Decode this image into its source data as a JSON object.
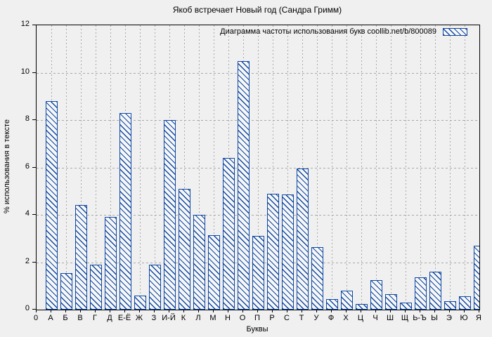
{
  "chart_data": {
    "type": "bar",
    "title": "Якоб встречает Новый год (Сандра Гримм)",
    "legend": "Диаграмма частоты использования букв coollib.net/b/800089",
    "legend_position": "top-right-inside",
    "xlabel": "Буквы",
    "ylabel": "% использования в тексте",
    "origin_label": "0",
    "ylim": [
      0,
      12
    ],
    "yticks": [
      0,
      2,
      4,
      6,
      8,
      10,
      12
    ],
    "grid": "dashed",
    "categories": [
      "А",
      "Б",
      "В",
      "Г",
      "Д",
      "Е-Ё",
      "Ж",
      "З",
      "И-Й",
      "К",
      "Л",
      "М",
      "Н",
      "О",
      "П",
      "Р",
      "С",
      "Т",
      "У",
      "Ф",
      "Х",
      "Ц",
      "Ч",
      "Ш",
      "Щ",
      "Ь-Ъ",
      "Ы",
      "Э",
      "Ю",
      "Я"
    ],
    "values": [
      8.8,
      1.55,
      4.4,
      1.9,
      3.9,
      8.3,
      0.6,
      1.9,
      8.0,
      5.1,
      4.0,
      3.15,
      6.4,
      10.5,
      3.1,
      4.9,
      4.85,
      5.95,
      2.65,
      0.45,
      0.8,
      0.25,
      1.25,
      0.65,
      0.3,
      1.35,
      1.6,
      0.35,
      0.55,
      2.7
    ],
    "colors": {
      "bar": "#0d47a1",
      "bar_fill": "#f7f7f7",
      "background": "#f0f0f0",
      "grid": "#a9a9a9",
      "axis": "#000000"
    }
  }
}
